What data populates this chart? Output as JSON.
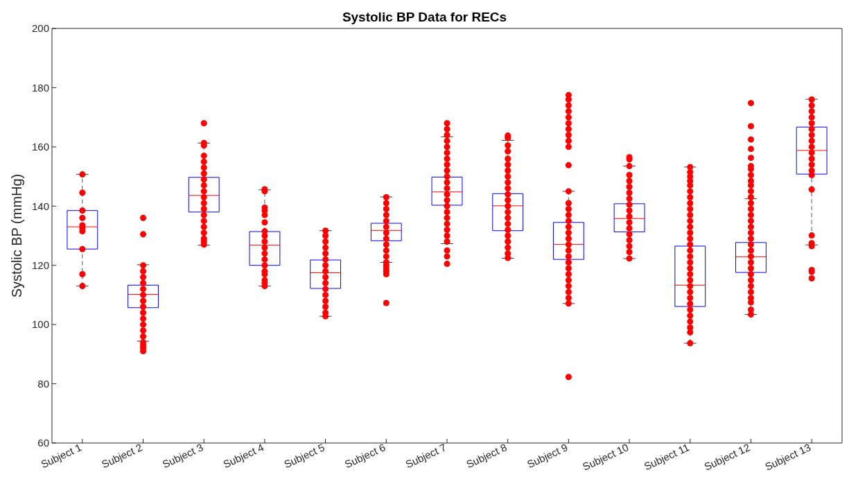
{
  "chart_data": {
    "type": "box",
    "title": "Systolic BP Data for RECs",
    "ylabel": "Systolic BP (mmHg)",
    "categories": [
      "Subject 1",
      "Subject 2",
      "Subject 3",
      "Subject 4",
      "Subject 5",
      "Subject 6",
      "Subject 7",
      "Subject 8",
      "Subject 9",
      "Subject 10",
      "Subject 11",
      "Subject 12",
      "Subject 13"
    ],
    "ylim": [
      60,
      200
    ],
    "yticks": [
      60,
      80,
      100,
      120,
      140,
      160,
      180,
      200
    ],
    "grid": false,
    "legend": false,
    "series": [
      {
        "color": "#0000ff",
        "boxes": [
          {
            "low": 113,
            "q1": 125.5,
            "median": 133,
            "q3": 138.5,
            "high": 150.7
          },
          {
            "low": 94.4,
            "q1": 105.7,
            "median": 110.2,
            "q3": 113.3,
            "high": 120.2
          },
          {
            "low": 126.8,
            "q1": 138,
            "median": 143.6,
            "q3": 149.7,
            "high": 161.3
          },
          {
            "low": 113,
            "q1": 120,
            "median": 126.8,
            "q3": 131.4,
            "high": 145.5
          },
          {
            "low": 102.8,
            "q1": 112.2,
            "median": 117.5,
            "q3": 121.8,
            "high": 131.7
          },
          {
            "low": 121,
            "q1": 128.3,
            "median": 131.8,
            "q3": 134.2,
            "high": 143.1
          },
          {
            "low": 127.3,
            "q1": 140.3,
            "median": 144.8,
            "q3": 149.8,
            "high": 163.4
          },
          {
            "low": 122.4,
            "q1": 131.7,
            "median": 140.1,
            "q3": 144.2,
            "high": 162.2
          },
          {
            "low": 107.1,
            "q1": 122,
            "median": 127.1,
            "q3": 134.5,
            "high": 145
          },
          {
            "low": 122.3,
            "q1": 131.3,
            "median": 135.8,
            "q3": 140.8,
            "high": 153.5
          },
          {
            "low": 93.7,
            "q1": 106.1,
            "median": 113.3,
            "q3": 126.5,
            "high": 153.2
          },
          {
            "low": 103.4,
            "q1": 117.6,
            "median": 122.9,
            "q3": 127.7,
            "high": 142.5
          },
          {
            "low": 126.9,
            "q1": 150.8,
            "median": 158.8,
            "q3": 166.7,
            "high": 176.1
          }
        ]
      },
      {
        "type": "scatter",
        "color": "#ff0000",
        "marker": "circle",
        "x": [
          "Subject 1",
          "Subject 1",
          "Subject 1",
          "Subject 1",
          "Subject 1",
          "Subject 1",
          "Subject 1",
          "Subject 1",
          "Subject 1",
          "Subject 1",
          "Subject 2",
          "Subject 2",
          "Subject 2",
          "Subject 2",
          "Subject 2",
          "Subject 2",
          "Subject 2",
          "Subject 2",
          "Subject 2",
          "Subject 2",
          "Subject 2",
          "Subject 2",
          "Subject 2",
          "Subject 2",
          "Subject 2",
          "Subject 2",
          "Subject 2",
          "Subject 2",
          "Subject 2",
          "Subject 3",
          "Subject 3",
          "Subject 3",
          "Subject 3",
          "Subject 3",
          "Subject 3",
          "Subject 3",
          "Subject 3",
          "Subject 3",
          "Subject 3",
          "Subject 3",
          "Subject 3",
          "Subject 3",
          "Subject 3",
          "Subject 3",
          "Subject 3",
          "Subject 3",
          "Subject 3",
          "Subject 3",
          "Subject 3",
          "Subject 4",
          "Subject 4",
          "Subject 4",
          "Subject 4",
          "Subject 4",
          "Subject 4",
          "Subject 4",
          "Subject 4",
          "Subject 4",
          "Subject 4",
          "Subject 4",
          "Subject 4",
          "Subject 4",
          "Subject 4",
          "Subject 4",
          "Subject 4",
          "Subject 4",
          "Subject 4",
          "Subject 5",
          "Subject 5",
          "Subject 5",
          "Subject 5",
          "Subject 5",
          "Subject 5",
          "Subject 5",
          "Subject 5",
          "Subject 5",
          "Subject 5",
          "Subject 5",
          "Subject 5",
          "Subject 5",
          "Subject 5",
          "Subject 5",
          "Subject 5",
          "Subject 6",
          "Subject 6",
          "Subject 6",
          "Subject 6",
          "Subject 6",
          "Subject 6",
          "Subject 6",
          "Subject 6",
          "Subject 6",
          "Subject 6",
          "Subject 6",
          "Subject 6",
          "Subject 6",
          "Subject 6",
          "Subject 6",
          "Subject 6",
          "Subject 6",
          "Subject 7",
          "Subject 7",
          "Subject 7",
          "Subject 7",
          "Subject 7",
          "Subject 7",
          "Subject 7",
          "Subject 7",
          "Subject 7",
          "Subject 7",
          "Subject 7",
          "Subject 7",
          "Subject 7",
          "Subject 7",
          "Subject 7",
          "Subject 7",
          "Subject 7",
          "Subject 7",
          "Subject 7",
          "Subject 7",
          "Subject 7",
          "Subject 7",
          "Subject 7",
          "Subject 7",
          "Subject 8",
          "Subject 8",
          "Subject 8",
          "Subject 8",
          "Subject 8",
          "Subject 8",
          "Subject 8",
          "Subject 8",
          "Subject 8",
          "Subject 8",
          "Subject 8",
          "Subject 8",
          "Subject 8",
          "Subject 8",
          "Subject 8",
          "Subject 8",
          "Subject 8",
          "Subject 8",
          "Subject 8",
          "Subject 8",
          "Subject 8",
          "Subject 8",
          "Subject 9",
          "Subject 9",
          "Subject 9",
          "Subject 9",
          "Subject 9",
          "Subject 9",
          "Subject 9",
          "Subject 9",
          "Subject 9",
          "Subject 9",
          "Subject 9",
          "Subject 9",
          "Subject 9",
          "Subject 9",
          "Subject 9",
          "Subject 9",
          "Subject 9",
          "Subject 9",
          "Subject 9",
          "Subject 9",
          "Subject 9",
          "Subject 9",
          "Subject 9",
          "Subject 9",
          "Subject 9",
          "Subject 9",
          "Subject 9",
          "Subject 9",
          "Subject 9",
          "Subject 9",
          "Subject 9",
          "Subject 10",
          "Subject 10",
          "Subject 10",
          "Subject 10",
          "Subject 10",
          "Subject 10",
          "Subject 10",
          "Subject 10",
          "Subject 10",
          "Subject 10",
          "Subject 10",
          "Subject 10",
          "Subject 10",
          "Subject 10",
          "Subject 10",
          "Subject 10",
          "Subject 10",
          "Subject 10",
          "Subject 11",
          "Subject 11",
          "Subject 11",
          "Subject 11",
          "Subject 11",
          "Subject 11",
          "Subject 11",
          "Subject 11",
          "Subject 11",
          "Subject 11",
          "Subject 11",
          "Subject 11",
          "Subject 11",
          "Subject 11",
          "Subject 11",
          "Subject 11",
          "Subject 11",
          "Subject 11",
          "Subject 11",
          "Subject 11",
          "Subject 11",
          "Subject 11",
          "Subject 11",
          "Subject 11",
          "Subject 11",
          "Subject 11",
          "Subject 11",
          "Subject 11",
          "Subject 11",
          "Subject 11",
          "Subject 11",
          "Subject 12",
          "Subject 12",
          "Subject 12",
          "Subject 12",
          "Subject 12",
          "Subject 12",
          "Subject 12",
          "Subject 12",
          "Subject 12",
          "Subject 12",
          "Subject 12",
          "Subject 12",
          "Subject 12",
          "Subject 12",
          "Subject 12",
          "Subject 12",
          "Subject 12",
          "Subject 12",
          "Subject 12",
          "Subject 12",
          "Subject 12",
          "Subject 12",
          "Subject 12",
          "Subject 12",
          "Subject 12",
          "Subject 12",
          "Subject 12",
          "Subject 12",
          "Subject 12",
          "Subject 12",
          "Subject 12",
          "Subject 12",
          "Subject 13",
          "Subject 13",
          "Subject 13",
          "Subject 13",
          "Subject 13",
          "Subject 13",
          "Subject 13",
          "Subject 13",
          "Subject 13",
          "Subject 13",
          "Subject 13",
          "Subject 13",
          "Subject 13",
          "Subject 13",
          "Subject 13",
          "Subject 13",
          "Subject 13",
          "Subject 13",
          "Subject 13",
          "Subject 13",
          "Subject 13"
        ],
        "values": [
          150.7,
          144.5,
          138.5,
          136,
          133.5,
          132.5,
          131.5,
          125.5,
          117,
          113,
          136,
          130.5,
          120,
          118,
          116,
          114,
          112,
          110,
          108,
          106,
          104,
          102,
          100,
          98,
          96,
          94,
          93,
          92,
          91,
          168,
          161.3,
          160.5,
          157,
          155,
          153,
          151,
          149,
          147,
          145,
          143,
          141,
          139,
          137,
          135,
          133,
          131,
          129,
          128,
          127,
          145.7,
          145,
          139.5,
          138.5,
          137,
          134.5,
          131.5,
          130,
          128,
          126,
          124,
          122,
          120,
          118,
          117,
          115,
          114,
          113,
          131.7,
          130,
          128,
          126,
          124,
          122,
          120,
          118,
          116,
          114,
          112,
          110,
          108,
          106,
          104,
          102.8,
          143,
          141,
          139,
          137,
          135,
          133,
          131,
          129,
          127,
          125,
          123,
          121,
          120,
          119,
          118,
          117,
          107.3,
          168,
          166,
          164,
          162,
          160,
          158,
          156,
          154,
          152,
          150,
          148,
          146,
          144,
          142,
          140,
          138,
          136,
          134,
          132,
          130,
          128,
          125,
          123,
          120.5,
          163.8,
          163,
          160.5,
          158.5,
          156,
          154,
          152,
          150,
          148,
          146,
          144,
          142,
          140,
          138,
          136,
          134,
          132,
          130,
          128,
          126,
          124,
          122.5,
          177.5,
          176,
          174,
          172,
          170,
          168,
          166,
          164,
          162,
          160,
          153.8,
          145,
          141,
          139,
          137,
          135,
          133,
          131,
          129,
          127,
          125,
          123,
          121,
          119,
          117,
          115,
          113,
          111,
          109,
          107.1,
          82.3,
          156.5,
          155.8,
          153.5,
          150.5,
          148.5,
          146.5,
          144.5,
          142.5,
          140.5,
          138.5,
          136.5,
          134.5,
          132.5,
          130.5,
          128.5,
          126.5,
          124.5,
          122.3,
          153.2,
          151.5,
          150,
          148.5,
          147,
          145,
          143,
          141,
          139,
          137,
          135,
          133,
          131,
          129,
          127,
          125,
          123,
          121,
          119,
          117,
          115,
          113,
          111,
          109,
          107,
          105,
          103,
          101,
          99,
          97.4,
          93.7,
          174.8,
          167,
          162.5,
          159.3,
          156.3,
          153.5,
          152.5,
          150.5,
          148.5,
          147,
          145,
          143,
          141,
          139,
          137,
          135,
          133,
          131,
          129,
          127,
          125,
          123,
          121,
          119,
          117,
          115,
          113,
          111,
          109,
          107.5,
          105,
          103.4,
          176,
          174,
          172,
          170,
          168,
          166,
          164,
          162,
          160,
          158,
          156,
          154,
          152,
          150.5,
          145.6,
          130.1,
          127.5,
          126.5,
          118.4,
          117.8,
          115.6
        ]
      }
    ]
  }
}
